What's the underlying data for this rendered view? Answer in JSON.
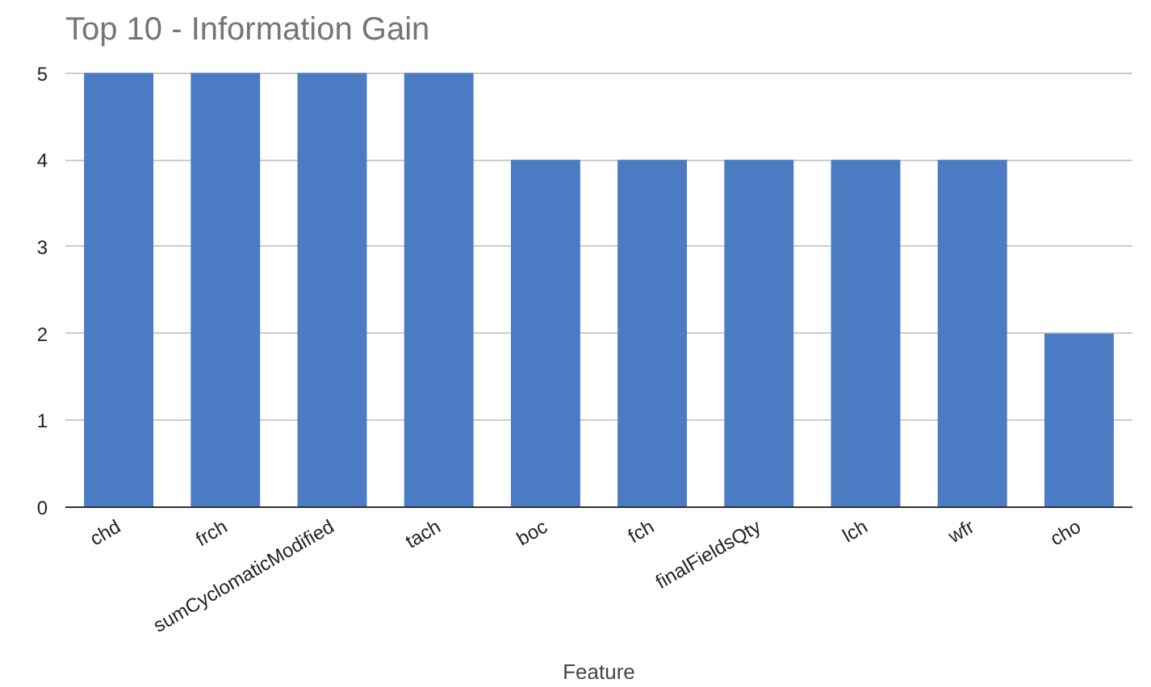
{
  "chart_data": {
    "type": "bar",
    "title": "Top 10 - Information Gain",
    "xlabel": "Feature",
    "categories": [
      "chd",
      "frch",
      "sumCyclomaticModified",
      "tach",
      "boc",
      "fch",
      "finalFieldsQty",
      "lch",
      "wfr",
      "cho"
    ],
    "values": [
      5,
      5,
      5,
      5,
      4,
      4,
      4,
      4,
      4,
      2
    ],
    "color": "#4a7bc3",
    "ylim": [
      0,
      5
    ],
    "yticks": [
      0,
      1,
      2,
      3,
      4,
      5
    ],
    "grid": "y"
  }
}
